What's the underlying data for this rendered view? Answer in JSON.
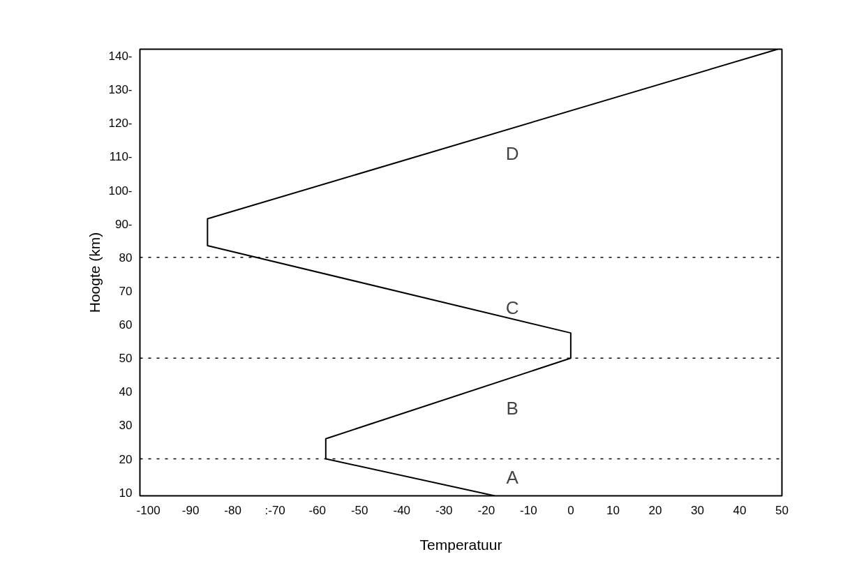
{
  "chart_data": {
    "type": "line",
    "xlabel": "Temperatuur",
    "ylabel": "Hoogte (km)",
    "x": [
      -18,
      -58,
      -58,
      0,
      0,
      -86,
      -86,
      49
    ],
    "series": [
      {
        "color": "#000000",
        "values": [
          9,
          20,
          26,
          50,
          57.5,
          83.5,
          91.5,
          142
        ]
      }
    ],
    "xlim": [
      -102,
      50
    ],
    "ylim": [
      9,
      142
    ],
    "xticks": [
      -100,
      -90,
      -80,
      {
        "value": -70,
        "label": ":-70"
      },
      -60,
      -50,
      -40,
      -30,
      -20,
      -10,
      0,
      10,
      20,
      30,
      40,
      50
    ],
    "yticks": [
      10,
      20,
      30,
      40,
      50,
      60,
      70,
      80,
      {
        "value": 90,
        "label": "90-"
      },
      {
        "value": 100,
        "label": "100-"
      },
      {
        "value": 110,
        "label": "110-"
      },
      {
        "value": 120,
        "label": "120-"
      },
      {
        "value": 130,
        "label": "130-"
      },
      {
        "value": 140,
        "label": "140-"
      }
    ],
    "ref_lines": [
      {
        "axis": "y",
        "value": 20,
        "color": "#000000",
        "line_style": "dashed"
      },
      {
        "axis": "y",
        "value": 50,
        "color": "#000000",
        "line_style": "dashed"
      },
      {
        "axis": "y",
        "value": 80,
        "color": "#000000",
        "line_style": "dashed"
      }
    ],
    "annotations": [
      "A",
      "B",
      "C",
      "D"
    ],
    "grid": false,
    "marker": "none",
    "line_style": "solid"
  }
}
